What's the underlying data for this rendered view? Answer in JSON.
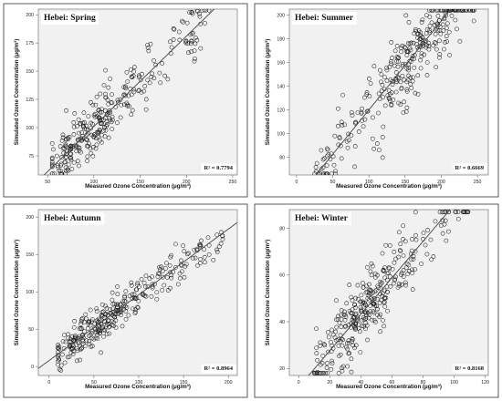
{
  "chart_data": [
    {
      "type": "scatter",
      "title": "Hebei: Spring",
      "xlabel": "Measured Ozone Concentration (μg/m³)",
      "ylabel": "Simulated Ozone Concentration (μg/m³)",
      "xlim": [
        40,
        255
      ],
      "ylim": [
        58,
        205
      ],
      "xticks": [
        50,
        100,
        150,
        200,
        250
      ],
      "yticks": [
        75,
        100,
        125,
        150,
        175,
        200
      ],
      "r2_text": "R² = 0.7794",
      "fit": {
        "slope": 0.8,
        "intercept": 21
      },
      "x": [],
      "y": []
    },
    {
      "type": "scatter",
      "title": "Hebei: Summer",
      "xlabel": "Measured Ozone Concentration (μg/m³)",
      "ylabel": "Simulated Ozone Concentration (μg/m³)",
      "xlim": [
        -10,
        265
      ],
      "ylim": [
        65,
        205
      ],
      "xticks": [
        0,
        50,
        100,
        150,
        200,
        250
      ],
      "yticks": [
        80,
        100,
        120,
        140,
        160,
        180,
        200
      ],
      "r2_text": "R² = 0.6669",
      "fit": {
        "slope": 0.75,
        "intercept": 45
      },
      "x": [],
      "y": []
    },
    {
      "type": "scatter",
      "title": "Hebei: Autumn",
      "xlabel": "Measured Ozone Concentration (μg/m³)",
      "ylabel": "Simulated Ozone Concentration (μg/m³)",
      "xlim": [
        -12,
        210
      ],
      "ylim": [
        -12,
        210
      ],
      "xticks": [
        0,
        50,
        100,
        150,
        200
      ],
      "yticks": [
        0,
        50,
        100,
        150,
        200
      ],
      "r2_text": "R² = 0.8964",
      "fit": {
        "slope": 0.88,
        "intercept": 8
      },
      "x": [],
      "y": []
    },
    {
      "type": "scatter",
      "title": "Hebei: Winter",
      "xlabel": "Measured Ozone Concentration (μg/m³)",
      "ylabel": "Simulated Ozone Concentration (μg/m³)",
      "xlim": [
        -6,
        122
      ],
      "ylim": [
        17,
        88
      ],
      "xticks": [
        0,
        20,
        40,
        60,
        80,
        100,
        120
      ],
      "yticks": [
        20,
        40,
        60,
        80
      ],
      "r2_text": "R² = 0.8168",
      "fit": {
        "slope": 0.78,
        "intercept": 12
      },
      "x": [],
      "y": []
    }
  ]
}
